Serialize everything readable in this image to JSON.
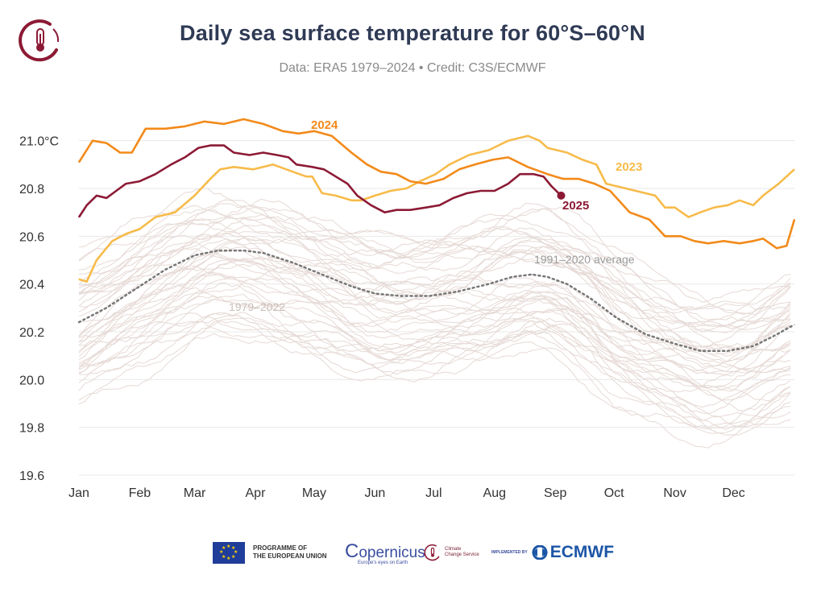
{
  "header": {
    "title": "Daily sea surface temperature for 60°S–60°N",
    "subtitle": "Data: ERA5 1979–2024 • Credit: C3S/ECMWF"
  },
  "colors": {
    "y2024": "#f28a1a",
    "y2023": "#f7bb4a",
    "y2025": "#8c1a35",
    "historical": "#e6dad6",
    "average": "#777777",
    "grid": "#e9e9e9",
    "brand": "#8c1a35"
  },
  "chart_data": {
    "type": "line",
    "x_unit": "day of year",
    "xlim": [
      1,
      366
    ],
    "ylim": [
      19.6,
      21.1
    ],
    "grid": "horizontal",
    "x_ticks": [
      {
        "label": "Jan",
        "day": 1
      },
      {
        "label": "Feb",
        "day": 32
      },
      {
        "label": "Mar",
        "day": 60
      },
      {
        "label": "Apr",
        "day": 91
      },
      {
        "label": "May",
        "day": 121
      },
      {
        "label": "Jun",
        "day": 152
      },
      {
        "label": "Jul",
        "day": 182
      },
      {
        "label": "Aug",
        "day": 213
      },
      {
        "label": "Sep",
        "day": 244
      },
      {
        "label": "Oct",
        "day": 274
      },
      {
        "label": "Nov",
        "day": 305
      },
      {
        "label": "Dec",
        "day": 335
      }
    ],
    "y_ticks": [
      {
        "value": 21.0,
        "label": "21.0°C"
      },
      {
        "value": 20.8,
        "label": "20.8"
      },
      {
        "value": 20.6,
        "label": "20.6"
      },
      {
        "value": 20.4,
        "label": "20.4"
      },
      {
        "value": 20.2,
        "label": "20.2"
      },
      {
        "value": 20.0,
        "label": "20.0"
      },
      {
        "value": 19.8,
        "label": "19.8"
      },
      {
        "value": 19.6,
        "label": "19.6"
      }
    ],
    "series": [
      {
        "name": "2024",
        "color": "#f28a1a",
        "points": [
          [
            1,
            20.91
          ],
          [
            8,
            21.0
          ],
          [
            15,
            20.99
          ],
          [
            22,
            20.95
          ],
          [
            28,
            20.95
          ],
          [
            35,
            21.05
          ],
          [
            45,
            21.05
          ],
          [
            55,
            21.06
          ],
          [
            65,
            21.08
          ],
          [
            75,
            21.07
          ],
          [
            85,
            21.09
          ],
          [
            95,
            21.07
          ],
          [
            105,
            21.04
          ],
          [
            113,
            21.03
          ],
          [
            121,
            21.04
          ],
          [
            130,
            21.02
          ],
          [
            140,
            20.95
          ],
          [
            148,
            20.9
          ],
          [
            155,
            20.87
          ],
          [
            163,
            20.86
          ],
          [
            170,
            20.83
          ],
          [
            178,
            20.82
          ],
          [
            187,
            20.84
          ],
          [
            195,
            20.88
          ],
          [
            203,
            20.9
          ],
          [
            212,
            20.92
          ],
          [
            220,
            20.93
          ],
          [
            230,
            20.89
          ],
          [
            240,
            20.86
          ],
          [
            248,
            20.84
          ],
          [
            256,
            20.84
          ],
          [
            264,
            20.82
          ],
          [
            272,
            20.79
          ],
          [
            282,
            20.7
          ],
          [
            292,
            20.67
          ],
          [
            300,
            20.6
          ],
          [
            308,
            20.6
          ],
          [
            315,
            20.58
          ],
          [
            322,
            20.57
          ],
          [
            330,
            20.58
          ],
          [
            338,
            20.57
          ],
          [
            345,
            20.58
          ],
          [
            350,
            20.59
          ],
          [
            357,
            20.55
          ],
          [
            362,
            20.56
          ],
          [
            366,
            20.67
          ]
        ]
      },
      {
        "name": "2023",
        "color": "#f7bb4a",
        "points": [
          [
            1,
            20.42
          ],
          [
            5,
            20.41
          ],
          [
            10,
            20.5
          ],
          [
            18,
            20.58
          ],
          [
            25,
            20.61
          ],
          [
            32,
            20.63
          ],
          [
            40,
            20.68
          ],
          [
            50,
            20.7
          ],
          [
            60,
            20.77
          ],
          [
            68,
            20.84
          ],
          [
            73,
            20.88
          ],
          [
            80,
            20.89
          ],
          [
            90,
            20.88
          ],
          [
            100,
            20.9
          ],
          [
            110,
            20.87
          ],
          [
            117,
            20.85
          ],
          [
            120,
            20.85
          ],
          [
            125,
            20.78
          ],
          [
            132,
            20.77
          ],
          [
            140,
            20.75
          ],
          [
            145,
            20.75
          ],
          [
            152,
            20.77
          ],
          [
            160,
            20.79
          ],
          [
            168,
            20.8
          ],
          [
            175,
            20.83
          ],
          [
            183,
            20.86
          ],
          [
            190,
            20.9
          ],
          [
            200,
            20.94
          ],
          [
            210,
            20.96
          ],
          [
            220,
            21.0
          ],
          [
            230,
            21.02
          ],
          [
            236,
            21.0
          ],
          [
            240,
            20.97
          ],
          [
            250,
            20.95
          ],
          [
            258,
            20.92
          ],
          [
            265,
            20.9
          ],
          [
            270,
            20.82
          ],
          [
            280,
            20.8
          ],
          [
            290,
            20.78
          ],
          [
            295,
            20.77
          ],
          [
            300,
            20.72
          ],
          [
            305,
            20.72
          ],
          [
            312,
            20.68
          ],
          [
            318,
            20.7
          ],
          [
            325,
            20.72
          ],
          [
            332,
            20.73
          ],
          [
            338,
            20.75
          ],
          [
            345,
            20.73
          ],
          [
            350,
            20.77
          ],
          [
            358,
            20.82
          ],
          [
            366,
            20.88
          ]
        ]
      },
      {
        "name": "2025",
        "color": "#8c1a35",
        "points": [
          [
            1,
            20.68
          ],
          [
            5,
            20.73
          ],
          [
            10,
            20.77
          ],
          [
            15,
            20.76
          ],
          [
            20,
            20.79
          ],
          [
            25,
            20.82
          ],
          [
            32,
            20.83
          ],
          [
            40,
            20.86
          ],
          [
            48,
            20.9
          ],
          [
            55,
            20.93
          ],
          [
            62,
            20.97
          ],
          [
            68,
            20.98
          ],
          [
            75,
            20.98
          ],
          [
            80,
            20.95
          ],
          [
            88,
            20.94
          ],
          [
            95,
            20.95
          ],
          [
            102,
            20.94
          ],
          [
            108,
            20.93
          ],
          [
            112,
            20.9
          ],
          [
            120,
            20.89
          ],
          [
            126,
            20.88
          ],
          [
            132,
            20.85
          ],
          [
            138,
            20.82
          ],
          [
            143,
            20.77
          ],
          [
            150,
            20.73
          ],
          [
            157,
            20.7
          ],
          [
            163,
            20.71
          ],
          [
            170,
            20.71
          ],
          [
            178,
            20.72
          ],
          [
            185,
            20.73
          ],
          [
            192,
            20.76
          ],
          [
            199,
            20.78
          ],
          [
            206,
            20.79
          ],
          [
            213,
            20.79
          ],
          [
            220,
            20.82
          ],
          [
            226,
            20.86
          ],
          [
            233,
            20.86
          ],
          [
            238,
            20.85
          ],
          [
            242,
            20.81
          ],
          [
            247,
            20.77
          ]
        ]
      },
      {
        "name": "1991–2020 average",
        "color": "#777777",
        "dashed": true,
        "points": [
          [
            1,
            20.24
          ],
          [
            15,
            20.3
          ],
          [
            30,
            20.38
          ],
          [
            45,
            20.46
          ],
          [
            60,
            20.52
          ],
          [
            72,
            20.54
          ],
          [
            85,
            20.54
          ],
          [
            95,
            20.53
          ],
          [
            110,
            20.49
          ],
          [
            125,
            20.44
          ],
          [
            140,
            20.39
          ],
          [
            152,
            20.36
          ],
          [
            165,
            20.35
          ],
          [
            180,
            20.35
          ],
          [
            195,
            20.37
          ],
          [
            210,
            20.4
          ],
          [
            222,
            20.43
          ],
          [
            232,
            20.44
          ],
          [
            240,
            20.43
          ],
          [
            250,
            20.4
          ],
          [
            262,
            20.34
          ],
          [
            275,
            20.26
          ],
          [
            290,
            20.19
          ],
          [
            305,
            20.15
          ],
          [
            318,
            20.12
          ],
          [
            332,
            20.12
          ],
          [
            345,
            20.14
          ],
          [
            355,
            20.18
          ],
          [
            366,
            20.23
          ]
        ]
      }
    ],
    "historical": {
      "name": "1979–2022",
      "color": "#e6dad6",
      "count": 44
    },
    "annotations": [
      {
        "text": "2024",
        "series": "2024"
      },
      {
        "text": "2023",
        "series": "2023"
      },
      {
        "text": "2025",
        "series": "2025"
      },
      {
        "text": "1991–2020 average",
        "series": "1991–2020 average"
      },
      {
        "text": "1979–2022",
        "series": "1979–2022"
      }
    ]
  },
  "footer": {
    "eu_line1": "PROGRAMME OF",
    "eu_line2": "THE EUROPEAN UNION",
    "copernicus": "opernicus",
    "copernicus_sub": "Europe's eyes on Earth",
    "c3s_line1": "Climate",
    "c3s_line2": "Change Service",
    "implemented": "IMPLEMENTED BY",
    "ecmwf": "ECMWF"
  }
}
